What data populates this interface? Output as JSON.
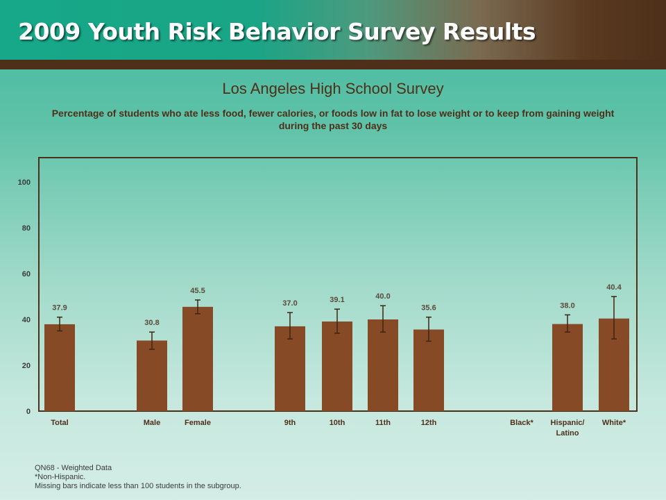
{
  "header": {
    "title": "2009 Youth Risk Behavior Survey Results"
  },
  "colors": {
    "bar": "#874a27",
    "error_bar": "#3d2412",
    "text_dark": "#4e2f19",
    "plot_border": "#4e2f19"
  },
  "chart_data": {
    "type": "bar",
    "title": "Los Angeles High School Survey",
    "subtitle": "Percentage of students who ate less food, fewer calories, or foods low in fat to lose weight or to keep from gaining weight during the past 30 days",
    "xlabel": "",
    "ylabel": "",
    "ylim": [
      0,
      110
    ],
    "yticks": [
      0,
      20,
      40,
      60,
      80,
      100
    ],
    "grid": false,
    "categories": [
      "Total",
      "Male",
      "Female",
      "9th",
      "10th",
      "11th",
      "12th",
      "Black*",
      "Hispanic/ Latino",
      "White*"
    ],
    "values": [
      37.9,
      30.8,
      45.5,
      37.0,
      39.1,
      40.0,
      35.6,
      null,
      38.0,
      40.4
    ],
    "value_labels": [
      "37.9",
      "30.8",
      "45.5",
      "37.0",
      "39.1",
      "40.0",
      "35.6",
      "",
      "38.0",
      "40.4"
    ],
    "error_low": [
      35.0,
      27.0,
      42.5,
      31.5,
      34.0,
      34.5,
      30.5,
      null,
      34.5,
      31.5
    ],
    "error_high": [
      41.0,
      34.5,
      48.5,
      43.0,
      44.5,
      46.0,
      41.0,
      null,
      42.0,
      50.0
    ]
  },
  "footnotes": {
    "line1": "QN68 - Weighted Data",
    "line2": "*Non-Hispanic.",
    "line3": "Missing bars indicate less than 100 students in the subgroup."
  }
}
